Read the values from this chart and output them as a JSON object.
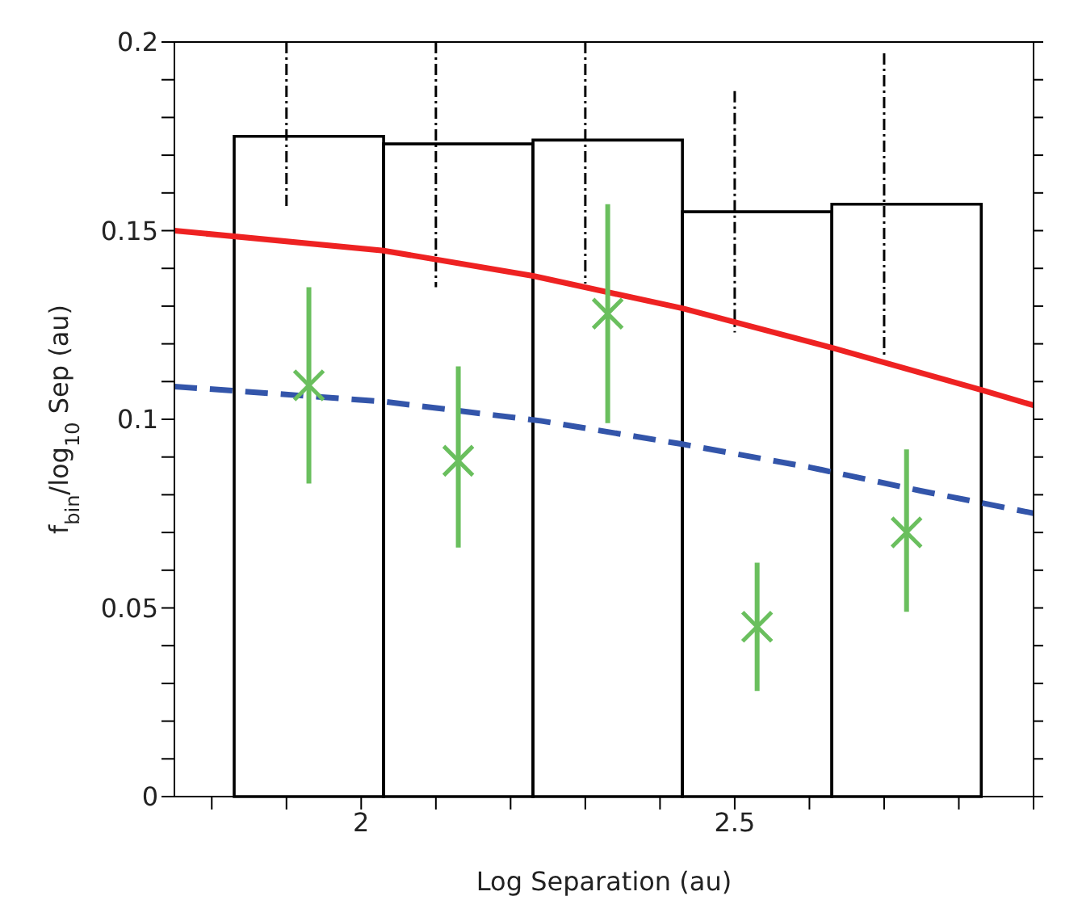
{
  "chart_data": {
    "type": "histogram",
    "xlabel": "Log Separation (au)",
    "ylabel": "f$_{bin}$/log$_{10}$ Sep (au)",
    "bins": [
      1.83,
      2.03,
      2.23,
      2.43,
      2.63,
      2.83
    ],
    "values": [
      0.175,
      0.173,
      0.174,
      0.155,
      0.157
    ],
    "color": "#000000",
    "series": [
      {
        "type": "line",
        "color": "#000000",
        "line_style": "dashed",
        "x": [
          1.9,
          1.9
        ],
        "values": [
          0.2,
          0.156
        ]
      },
      {
        "type": "line",
        "color": "#000000",
        "line_style": "dashed",
        "x": [
          2.1,
          2.1
        ],
        "values": [
          0.2,
          0.135
        ]
      },
      {
        "type": "line",
        "color": "#000000",
        "line_style": "dashed",
        "x": [
          2.3,
          2.3
        ],
        "values": [
          0.2,
          0.136
        ]
      },
      {
        "type": "line",
        "color": "#000000",
        "line_style": "dashed",
        "x": [
          2.5,
          2.5
        ],
        "values": [
          0.187,
          0.123
        ]
      },
      {
        "type": "line",
        "color": "#000000",
        "line_style": "dashed",
        "x": [
          2.7,
          2.7
        ],
        "values": [
          0.197,
          0.117
        ]
      },
      {
        "type": "line",
        "color": "#ee2222",
        "line_style": "solid",
        "x": [
          1.75,
          2.03,
          2.23,
          2.43,
          2.63,
          2.83,
          2.9
        ],
        "values": [
          0.15,
          0.1447,
          0.138,
          0.1294,
          0.119,
          0.1078,
          0.1037
        ]
      },
      {
        "type": "line",
        "color": "#3355aa",
        "line_style": "dashed",
        "x": [
          1.75,
          2.03,
          2.24,
          2.43,
          2.6,
          2.75,
          2.9
        ],
        "values": [
          0.1087,
          0.1047,
          0.0996,
          0.0934,
          0.0873,
          0.081,
          0.0751
        ]
      },
      {
        "type": "scatter",
        "color": "#6abf5e",
        "marker": "cross",
        "x": [
          1.93,
          2.13,
          2.33,
          2.53,
          2.73
        ],
        "values": [
          0.109,
          0.089,
          0.128,
          0.045,
          0.07
        ],
        "errors": [
          [
            0.083,
            0.135
          ],
          [
            0.066,
            0.114
          ],
          [
            0.099,
            0.157
          ],
          [
            0.028,
            0.062
          ],
          [
            0.049,
            0.092
          ]
        ]
      }
    ],
    "xlim": [
      1.75,
      2.9
    ],
    "xticks": [
      {
        "value": 1.8,
        "label": null
      },
      {
        "value": 1.9,
        "label": null
      },
      2,
      {
        "value": 2.1,
        "label": null
      },
      {
        "value": 2.2,
        "label": null
      },
      {
        "value": 2.3,
        "label": null
      },
      {
        "value": 2.4,
        "label": null
      },
      2.5,
      {
        "value": 2.6,
        "label": null
      },
      {
        "value": 2.7,
        "label": null
      },
      {
        "value": 2.8,
        "label": null
      },
      {
        "value": 2.9,
        "label": null
      }
    ],
    "ylim": [
      0,
      0.2
    ],
    "yticks": [
      0,
      {
        "value": 0.01,
        "label": null
      },
      {
        "value": 0.02,
        "label": null
      },
      {
        "value": 0.03,
        "label": null
      },
      {
        "value": 0.04,
        "label": null
      },
      0.05,
      {
        "value": 0.06,
        "label": null
      },
      {
        "value": 0.07,
        "label": null
      },
      {
        "value": 0.08,
        "label": null
      },
      {
        "value": 0.09,
        "label": null
      },
      0.1,
      {
        "value": 0.11,
        "label": null
      },
      {
        "value": 0.12,
        "label": null
      },
      {
        "value": 0.13,
        "label": null
      },
      {
        "value": 0.14,
        "label": null
      },
      0.15,
      {
        "value": 0.16,
        "label": null
      },
      {
        "value": 0.17,
        "label": null
      },
      {
        "value": 0.18,
        "label": null
      },
      {
        "value": 0.19,
        "label": null
      },
      0.2
    ]
  }
}
